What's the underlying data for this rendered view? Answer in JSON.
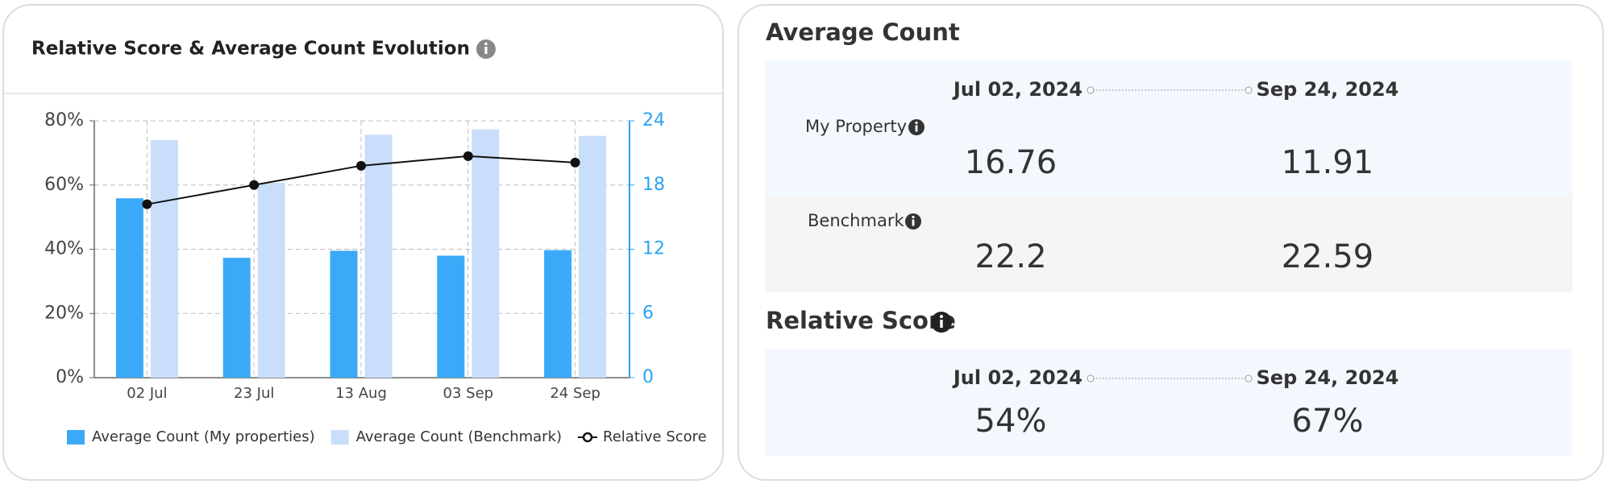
{
  "chart_data": {
    "type": "bar",
    "title": "Relative Score & Average Count Evolution",
    "categories": [
      "02 Jul",
      "23 Jul",
      "13 Aug",
      "03 Sep",
      "24 Sep"
    ],
    "series": [
      {
        "name": "Average Count (My properties)",
        "color": "#3aaaf8",
        "values": [
          16.76,
          11.2,
          11.86,
          11.4,
          11.91
        ],
        "axis": "y2"
      },
      {
        "name": "Average Count (Benchmark)",
        "color": "#c9defb",
        "values": [
          22.2,
          18.2,
          22.7,
          23.2,
          22.59
        ],
        "axis": "y2"
      },
      {
        "name": "Relative Score",
        "color": "#111111",
        "type": "line",
        "values": [
          54,
          60,
          66,
          69,
          67
        ]
      }
    ],
    "ylim": [
      0,
      80
    ],
    "yticks": [
      {
        "value": 0,
        "label": "0%"
      },
      {
        "value": 20,
        "label": "20%"
      },
      {
        "value": 40,
        "label": "40%"
      },
      {
        "value": 60,
        "label": "60%"
      },
      {
        "value": 80,
        "label": "80%"
      }
    ],
    "y2lim": [
      0,
      24
    ],
    "y2ticks": [
      0,
      6,
      12,
      18,
      24
    ],
    "y2color": "#29a3f5",
    "grid": true,
    "legend": "bottom"
  },
  "summary": {
    "average_count": {
      "title": "Average Count",
      "start_date": "Jul 02, 2024",
      "end_date": "Sep 24, 2024",
      "rows": [
        {
          "label": "My Property",
          "start": 16.76,
          "end": 11.91
        },
        {
          "label": "Benchmark",
          "start": 22.2,
          "end": 22.59
        }
      ]
    },
    "relative_score": {
      "title": "Relative Score",
      "start_date": "Jul 02, 2024",
      "end_date": "Sep 24, 2024",
      "start": "54%",
      "end": "67%"
    }
  }
}
